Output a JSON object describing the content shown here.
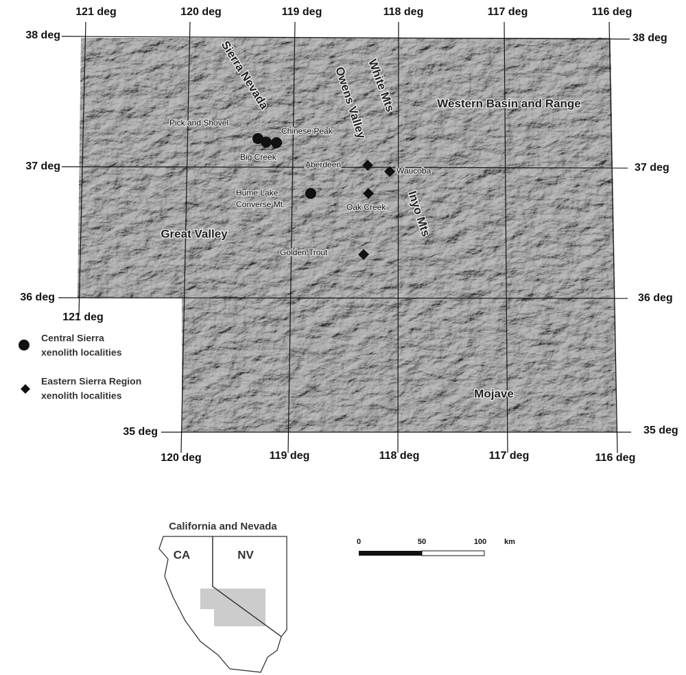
{
  "graticule": {
    "top": [
      "121 deg",
      "120 deg",
      "119 deg",
      "118 deg",
      "117 deg",
      "116 deg"
    ],
    "left": [
      "38 deg",
      "37 deg",
      "36 deg",
      "35 deg"
    ],
    "right": [
      "38 deg",
      "37 deg",
      "36 deg",
      "35 deg"
    ],
    "bottom": [
      "120 deg",
      "119 deg",
      "118 deg",
      "117 deg",
      "116 deg"
    ],
    "step": "121 deg"
  },
  "regions": [
    "Sierra Nevada",
    "Owens Valley",
    "White Mts",
    "Western Basin and Range",
    "Great Valley",
    "Inyo Mts",
    "Mojave"
  ],
  "localities": {
    "central": [
      "Pick and Shovel",
      "Chinese Peak",
      "Big Creek",
      "Hume Lake",
      "Converse Mt."
    ],
    "eastern": [
      "Aberdeen",
      "Waucoba",
      "Oak Creek",
      "Golden Trout"
    ]
  },
  "legend": {
    "central": [
      "Central Sierra",
      "xenolith localities"
    ],
    "eastern": [
      "Eastern Sierra Region",
      "xenolith localities"
    ]
  },
  "inset": {
    "title": "California and Nevada",
    "labels": [
      "CA",
      "NV"
    ]
  },
  "scale_bar": {
    "ticks": [
      "0",
      "50",
      "100"
    ],
    "unit": "km"
  }
}
